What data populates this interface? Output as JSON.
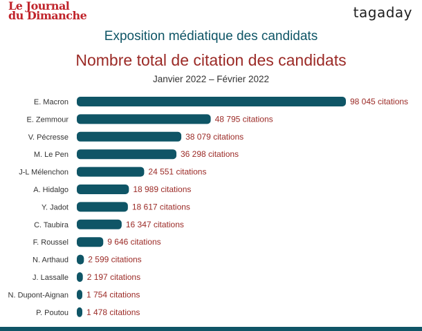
{
  "brand": {
    "left_line1": "Le Journal",
    "left_line2": "du Dimanche",
    "right": "tagaday"
  },
  "header": {
    "title": "Exposition médiatique des candidats",
    "subtitle": "Nombre total de citation des candidats",
    "period": "Janvier 2022 – Février 2022"
  },
  "colors": {
    "bar": "#0f5566",
    "value_text": "#9b2a26",
    "title": "#0f5566"
  },
  "chart_data": {
    "type": "bar",
    "orientation": "horizontal",
    "categories": [
      "E. Macron",
      "E. Zemmour",
      "V. Pécresse",
      "M. Le Pen",
      "J-L Mélenchon",
      "A. Hidalgo",
      "Y. Jadot",
      "C. Taubira",
      "F. Roussel",
      "N. Arthaud",
      "J. Lassalle",
      "N. Dupont-Aignan",
      "P. Poutou"
    ],
    "values": [
      98045,
      48795,
      38079,
      36298,
      24551,
      18989,
      18617,
      16347,
      9646,
      2599,
      2197,
      1754,
      1478
    ],
    "value_labels": [
      "98 045 citations",
      "48 795 citations",
      "38 079 citations",
      "36 298 citations",
      "24 551 citations",
      "18 989 citations",
      "18 617 citations",
      "16 347 citations",
      "9 646 citations",
      "2 599 citations",
      "2 197 citations",
      "1 754 citations",
      "1 478 citations"
    ],
    "xlim": [
      0,
      98045
    ],
    "grid": false,
    "legend": "none"
  }
}
